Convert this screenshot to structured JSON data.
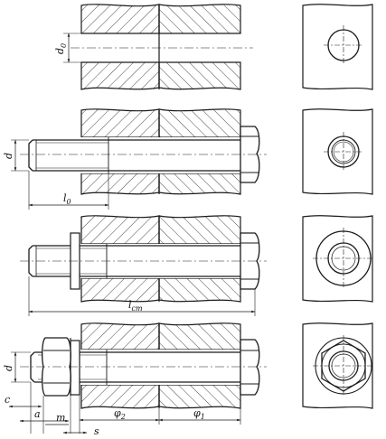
{
  "colors": {
    "ink": "#1a1a1a",
    "paper": "#ffffff"
  },
  "labels": {
    "d0": "d",
    "d0_sub": "0",
    "d_stage2": "d",
    "l0": "l",
    "l0_sub": "0",
    "lst": "l",
    "lst_sub": "ст",
    "d_stage4": "d",
    "c": "c",
    "a": "a",
    "m": "m",
    "s": "s",
    "phi2": "φ",
    "phi2_sub": "2",
    "phi1": "φ",
    "phi1_sub": "1"
  }
}
